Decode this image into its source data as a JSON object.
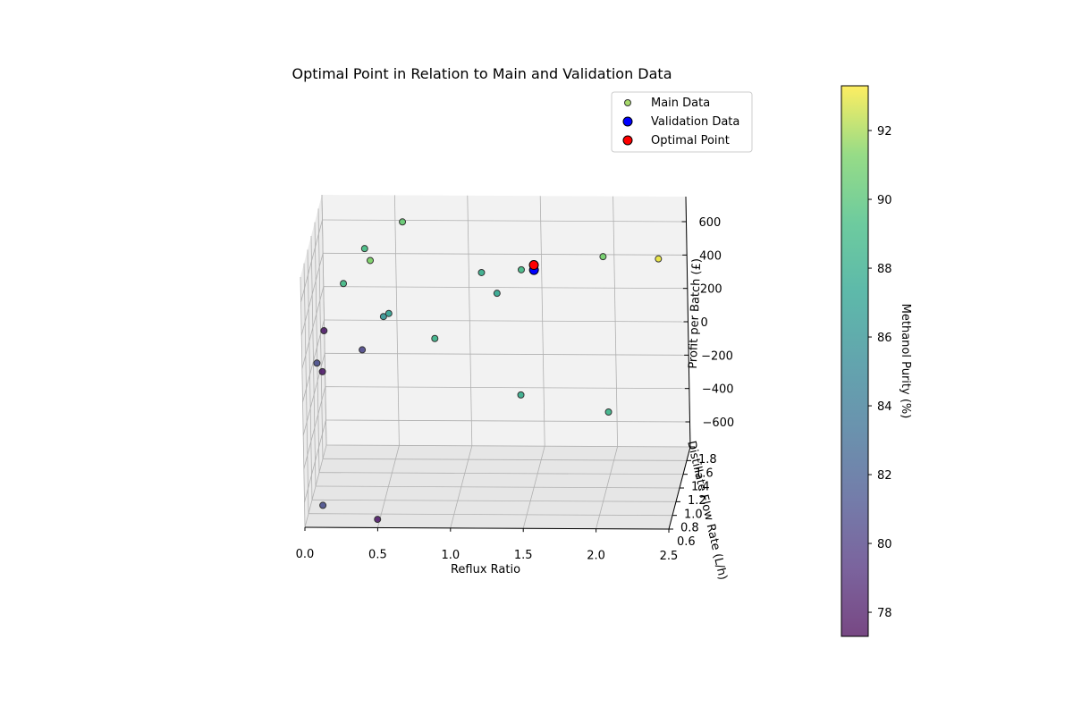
{
  "chart_data": {
    "type": "scatter",
    "projection": "3d",
    "title": "Optimal Point in Relation to Main and Validation Data",
    "xlabel": "Reflux Ratio",
    "ylabel": "Distillate Flow Rate (L/h)",
    "zlabel": "Profit per Batch (£)",
    "xlim": [
      0.0,
      2.5
    ],
    "ylim": [
      0.6,
      1.8
    ],
    "zlim": [
      -750,
      750
    ],
    "x_ticks": [
      "0.0",
      "0.5",
      "1.0",
      "1.5",
      "2.0",
      "2.5"
    ],
    "y_ticks": [
      "0.6",
      "0.8",
      "1.0",
      "1.2",
      "1.4",
      "1.6",
      "1.8"
    ],
    "z_ticks": [
      "−600",
      "−400",
      "−200",
      "0",
      "200",
      "400",
      "600"
    ],
    "grid": true,
    "legend_position": "upper right",
    "colorbar": {
      "label": "Methanol Purity (%)",
      "range": [
        77.3,
        93.3
      ],
      "ticks": [
        "78",
        "80",
        "82",
        "84",
        "86",
        "88",
        "90",
        "92"
      ]
    },
    "series": [
      {
        "name": "Main Data",
        "points": [
          {
            "x": 0.55,
            "y": 1.8,
            "z": 590,
            "purity": 90.5
          },
          {
            "x": 0.3,
            "y": 1.7,
            "z": 470,
            "purity": 89.3
          },
          {
            "x": 0.35,
            "y": 1.6,
            "z": 440,
            "purity": 91.3
          },
          {
            "x": 0.15,
            "y": 1.7,
            "z": 260,
            "purity": 89.0
          },
          {
            "x": 0.55,
            "y": 1.0,
            "z": 370,
            "purity": 87.0
          },
          {
            "x": 0.5,
            "y": 1.1,
            "z": 310,
            "purity": 86.0
          },
          {
            "x": 0.85,
            "y": 1.1,
            "z": 180,
            "purity": 88.5
          },
          {
            "x": 0.05,
            "y": 1.4,
            "z": 100,
            "purity": 78.0
          },
          {
            "x": 0.35,
            "y": 1.1,
            "z": 110,
            "purity": 80.5
          },
          {
            "x": 0.05,
            "y": 1.0,
            "z": 70,
            "purity": 81.0
          },
          {
            "x": 0.1,
            "y": 0.9,
            "z": 60,
            "purity": 78.0
          },
          {
            "x": 1.1,
            "y": 1.7,
            "z": 330,
            "purity": 88.0
          },
          {
            "x": 1.4,
            "y": 1.5,
            "z": 430,
            "purity": 89.0
          },
          {
            "x": 1.25,
            "y": 1.35,
            "z": 350,
            "purity": 87.5
          },
          {
            "x": 1.95,
            "y": 1.6,
            "z": 470,
            "purity": 91.0
          },
          {
            "x": 2.35,
            "y": 1.45,
            "z": 520,
            "purity": 93.0
          },
          {
            "x": 1.5,
            "y": 0.6,
            "z": 50,
            "purity": 88.0
          },
          {
            "x": 2.1,
            "y": 0.6,
            "z": -50,
            "purity": 88.5
          },
          {
            "x": 0.1,
            "y": 0.8,
            "z": -700,
            "purity": 81.0
          },
          {
            "x": 0.5,
            "y": 0.6,
            "z": -700,
            "purity": 78.0
          }
        ]
      },
      {
        "name": "Validation Data",
        "color": "#0000ff",
        "points": [
          {
            "x": 1.5,
            "y": 1.4,
            "z": 470
          }
        ]
      },
      {
        "name": "Optimal Point",
        "color": "#ff0000",
        "points": [
          {
            "x": 1.5,
            "y": 1.4,
            "z": 500
          }
        ]
      }
    ]
  }
}
